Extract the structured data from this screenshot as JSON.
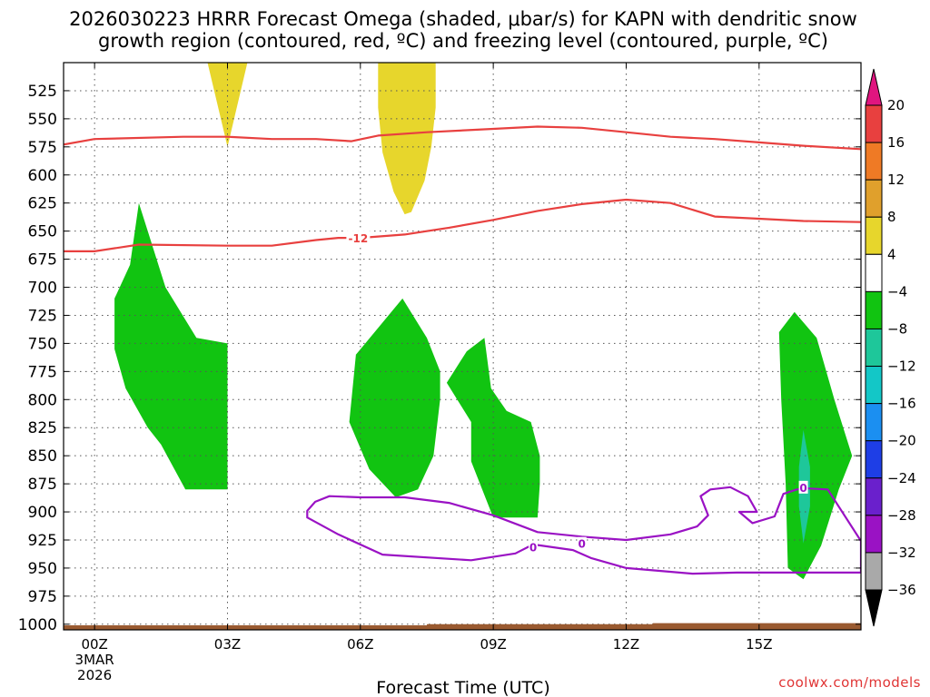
{
  "title": {
    "line1": "2026030223 HRRR Forecast Omega (shaded, μbar/s) for KAPN with dendritic snow",
    "line2": "growth region (contoured, red, ºC) and freezing level (contoured, purple, ºC)"
  },
  "credit": "coolwx.com/models",
  "chart_data": {
    "type": "contour",
    "xlabel": "Forecast Time (UTC)",
    "xlim": [
      -0.7,
      17.3
    ],
    "x_ticks": [
      {
        "value": 0,
        "label": "00Z",
        "sub": [
          "3MAR",
          "2026"
        ]
      },
      {
        "value": 3,
        "label": "03Z"
      },
      {
        "value": 6,
        "label": "06Z"
      },
      {
        "value": 9,
        "label": "09Z"
      },
      {
        "value": 12,
        "label": "12Z"
      },
      {
        "value": 15,
        "label": "15Z"
      }
    ],
    "ylim": [
      1005,
      500
    ],
    "y_ticks": [
      525,
      550,
      575,
      600,
      625,
      650,
      675,
      700,
      725,
      750,
      775,
      800,
      825,
      850,
      875,
      900,
      925,
      950,
      975,
      1000
    ],
    "grid": true,
    "colorbar": {
      "levels": [
        20,
        16,
        12,
        8,
        4,
        -4,
        -8,
        -12,
        -16,
        -20,
        -24,
        -28,
        -32,
        -36
      ],
      "colors": [
        "#e8403f",
        "#ef7a25",
        "#e0a02c",
        "#e7d62c",
        "#ffffff",
        "#11c411",
        "#1ec79a",
        "#13c7c7",
        "#1b8ff1",
        "#1e3ee6",
        "#6a20cc",
        "#9a12c4",
        "#a9a9a9"
      ],
      "top_arrow_color": "#e0157f",
      "bottom_arrow_color": "#000000"
    },
    "omega_regions": [
      {
        "color": "#e7d62c",
        "value_range": [
          4,
          8
        ],
        "points": [
          [
            2.55,
            500
          ],
          [
            3.45,
            500
          ],
          [
            3.0,
            575
          ]
        ]
      },
      {
        "color": "#e7d62c",
        "value_range": [
          4,
          8
        ],
        "points": [
          [
            6.4,
            500
          ],
          [
            7.7,
            500
          ],
          [
            7.7,
            540
          ],
          [
            7.6,
            575
          ],
          [
            7.45,
            605
          ],
          [
            7.15,
            633
          ],
          [
            7.0,
            635
          ],
          [
            6.75,
            615
          ],
          [
            6.5,
            580
          ],
          [
            6.4,
            540
          ]
        ]
      },
      {
        "color": "#11c411",
        "value_range": [
          -8,
          -4
        ],
        "points": [
          [
            1.0,
            625
          ],
          [
            1.2,
            650
          ],
          [
            1.6,
            700
          ],
          [
            2.3,
            745
          ],
          [
            3.0,
            750
          ],
          [
            3.0,
            880
          ],
          [
            2.05,
            880
          ],
          [
            1.5,
            840
          ],
          [
            1.2,
            825
          ],
          [
            0.7,
            790
          ],
          [
            0.45,
            755
          ],
          [
            0.45,
            710
          ],
          [
            0.8,
            680
          ]
        ]
      },
      {
        "color": "#11c411",
        "value_range": [
          -8,
          -4
        ],
        "points": [
          [
            6.95,
            710
          ],
          [
            7.5,
            745
          ],
          [
            7.8,
            775
          ],
          [
            7.8,
            800
          ],
          [
            7.65,
            850
          ],
          [
            7.3,
            880
          ],
          [
            6.8,
            887
          ],
          [
            6.2,
            862
          ],
          [
            5.75,
            820
          ],
          [
            5.9,
            760
          ]
        ]
      },
      {
        "color": "#11c411",
        "value_range": [
          -8,
          -4
        ],
        "points": [
          [
            8.95,
            790
          ],
          [
            9.3,
            810
          ],
          [
            9.85,
            820
          ],
          [
            10.05,
            850
          ],
          [
            10.05,
            875
          ],
          [
            10.0,
            905
          ],
          [
            9.0,
            905
          ],
          [
            8.5,
            855
          ],
          [
            8.5,
            820
          ],
          [
            7.95,
            785
          ],
          [
            8.4,
            757
          ],
          [
            8.8,
            745
          ]
        ]
      },
      {
        "color": "#11c411",
        "value_range": [
          -8,
          -4
        ],
        "points": [
          [
            15.8,
            722
          ],
          [
            16.3,
            745
          ],
          [
            16.7,
            800
          ],
          [
            17.1,
            850
          ],
          [
            16.8,
            880
          ],
          [
            16.4,
            930
          ],
          [
            16.0,
            960
          ],
          [
            15.65,
            950
          ],
          [
            15.6,
            875
          ],
          [
            15.5,
            800
          ],
          [
            15.45,
            740
          ]
        ]
      },
      {
        "color": "#1ec79a",
        "value_range": [
          -12,
          -8
        ],
        "points": [
          [
            16.0,
            827
          ],
          [
            16.15,
            860
          ],
          [
            16.15,
            895
          ],
          [
            16.0,
            928
          ],
          [
            15.9,
            895
          ],
          [
            15.9,
            860
          ]
        ]
      }
    ],
    "dgz_contours": [
      {
        "color": "#e8403f",
        "label": null,
        "points": [
          [
            -0.7,
            573
          ],
          [
            0.0,
            568
          ],
          [
            2.0,
            566
          ],
          [
            3.0,
            566
          ],
          [
            4.0,
            568
          ],
          [
            5.0,
            568
          ],
          [
            5.8,
            570
          ],
          [
            6.4,
            565
          ],
          [
            7.5,
            562
          ],
          [
            9.0,
            559
          ],
          [
            10.0,
            557
          ],
          [
            11.0,
            558
          ],
          [
            12.0,
            562
          ],
          [
            13.0,
            566
          ],
          [
            14.0,
            568
          ],
          [
            15.0,
            571
          ],
          [
            16.0,
            574
          ],
          [
            17.3,
            577
          ]
        ]
      },
      {
        "color": "#e8403f",
        "label": "-12",
        "label_x": 5.95,
        "points": [
          [
            -0.7,
            668
          ],
          [
            0.0,
            668
          ],
          [
            1.0,
            662
          ],
          [
            3.0,
            663
          ],
          [
            4.0,
            663
          ],
          [
            5.0,
            658
          ],
          [
            5.5,
            656
          ],
          [
            6.0,
            656
          ],
          [
            7.0,
            653
          ],
          [
            8.0,
            647
          ],
          [
            9.0,
            640
          ],
          [
            10.0,
            632
          ],
          [
            11.0,
            626
          ],
          [
            12.0,
            622
          ],
          [
            13.0,
            625
          ],
          [
            14.0,
            637
          ],
          [
            15.0,
            639
          ],
          [
            16.0,
            641
          ],
          [
            17.3,
            642
          ]
        ]
      }
    ],
    "freezing_level": [
      {
        "color": "#9a12c4",
        "closed": true,
        "points": [
          [
            4.8,
            899
          ],
          [
            4.98,
            891
          ],
          [
            5.3,
            886
          ],
          [
            6.0,
            887
          ],
          [
            7.0,
            887
          ],
          [
            8.0,
            892
          ],
          [
            9.0,
            903
          ],
          [
            10.0,
            918
          ],
          [
            11.0,
            922
          ],
          [
            12.0,
            925
          ],
          [
            13.0,
            920
          ],
          [
            13.6,
            913
          ],
          [
            13.85,
            903
          ],
          [
            13.68,
            886
          ],
          [
            13.9,
            880
          ],
          [
            14.35,
            878
          ],
          [
            14.75,
            886
          ],
          [
            14.95,
            900
          ],
          [
            14.55,
            900
          ],
          [
            14.85,
            910
          ],
          [
            15.35,
            904
          ],
          [
            15.55,
            884
          ],
          [
            15.85,
            880
          ],
          [
            16.05,
            879
          ],
          [
            16.55,
            880
          ],
          [
            17.3,
            926
          ],
          [
            17.3,
            954
          ],
          [
            16.6,
            954
          ],
          [
            14.5,
            954
          ],
          [
            13.5,
            955
          ],
          [
            12.0,
            950
          ],
          [
            11.2,
            941
          ],
          [
            10.8,
            934
          ],
          [
            9.9,
            929
          ],
          [
            9.5,
            937
          ],
          [
            8.5,
            943
          ],
          [
            6.5,
            938
          ],
          [
            5.5,
            920
          ],
          [
            4.8,
            905
          ]
        ]
      }
    ],
    "freezing_labels": [
      {
        "text": "0",
        "x": 9.9,
        "p": 931
      },
      {
        "text": "0",
        "x": 11.0,
        "p": 928
      },
      {
        "text": "0",
        "x": 16.0,
        "p": 878
      }
    ],
    "terrain": {
      "color": "#9a5a30",
      "points": [
        [
          -0.7,
          1001
        ],
        [
          7.5,
          1001
        ],
        [
          7.5,
          1000
        ],
        [
          12.6,
          1000
        ],
        [
          12.6,
          999
        ],
        [
          17.3,
          999
        ],
        [
          17.3,
          1005
        ],
        [
          -0.7,
          1005
        ]
      ]
    }
  }
}
